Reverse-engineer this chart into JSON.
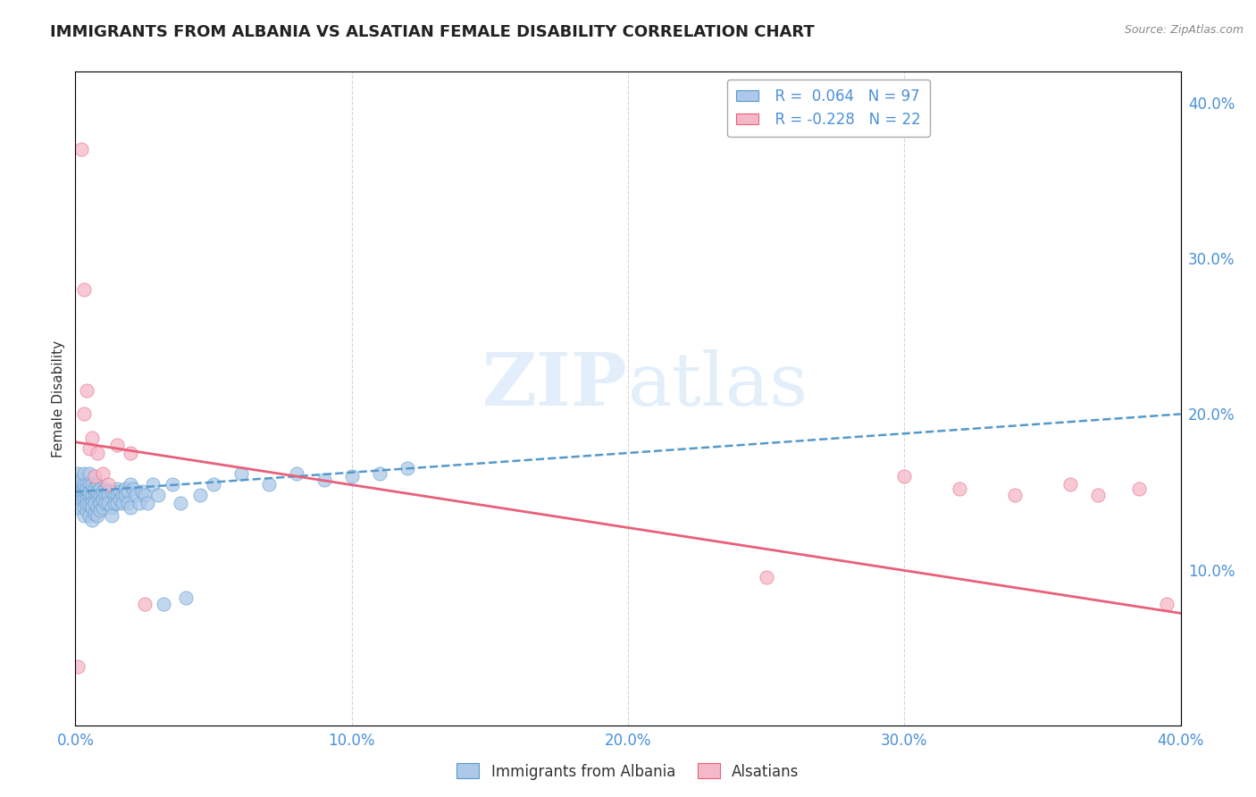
{
  "title": "IMMIGRANTS FROM ALBANIA VS ALSATIAN FEMALE DISABILITY CORRELATION CHART",
  "source": "Source: ZipAtlas.com",
  "ylabel": "Female Disability",
  "legend_label1": "Immigrants from Albania",
  "legend_label2": "Alsatians",
  "r1": 0.064,
  "n1": 97,
  "r2": -0.228,
  "n2": 22,
  "color_blue": "#adc8e8",
  "color_pink": "#f5b8c8",
  "color_blue_line": "#5599cc",
  "color_pink_line": "#e8607a",
  "xlim": [
    0.0,
    0.4
  ],
  "ylim": [
    0.0,
    0.42
  ],
  "xtick_vals": [
    0.0,
    0.1,
    0.2,
    0.3,
    0.4
  ],
  "ytick_right_vals": [
    0.1,
    0.2,
    0.3,
    0.4
  ],
  "background_color": "#ffffff",
  "grid_color": "#cccccc",
  "blue_scatter_x": [
    0.0005,
    0.001,
    0.001,
    0.001,
    0.002,
    0.002,
    0.002,
    0.002,
    0.003,
    0.003,
    0.003,
    0.003,
    0.003,
    0.003,
    0.003,
    0.004,
    0.004,
    0.004,
    0.004,
    0.004,
    0.004,
    0.004,
    0.005,
    0.005,
    0.005,
    0.005,
    0.005,
    0.005,
    0.006,
    0.006,
    0.006,
    0.006,
    0.006,
    0.006,
    0.007,
    0.007,
    0.007,
    0.007,
    0.007,
    0.008,
    0.008,
    0.008,
    0.008,
    0.008,
    0.009,
    0.009,
    0.009,
    0.009,
    0.01,
    0.01,
    0.01,
    0.01,
    0.011,
    0.011,
    0.011,
    0.012,
    0.012,
    0.012,
    0.013,
    0.013,
    0.013,
    0.014,
    0.014,
    0.015,
    0.015,
    0.015,
    0.016,
    0.016,
    0.017,
    0.017,
    0.018,
    0.018,
    0.019,
    0.019,
    0.02,
    0.02,
    0.021,
    0.022,
    0.023,
    0.024,
    0.025,
    0.026,
    0.028,
    0.03,
    0.032,
    0.035,
    0.038,
    0.04,
    0.045,
    0.05,
    0.06,
    0.07,
    0.08,
    0.09,
    0.1,
    0.11,
    0.12
  ],
  "blue_scatter_y": [
    0.155,
    0.162,
    0.148,
    0.14,
    0.155,
    0.15,
    0.145,
    0.158,
    0.152,
    0.148,
    0.145,
    0.155,
    0.162,
    0.14,
    0.135,
    0.15,
    0.155,
    0.148,
    0.145,
    0.152,
    0.138,
    0.142,
    0.148,
    0.155,
    0.15,
    0.142,
    0.135,
    0.162,
    0.152,
    0.148,
    0.143,
    0.155,
    0.14,
    0.132,
    0.15,
    0.148,
    0.143,
    0.152,
    0.136,
    0.148,
    0.155,
    0.15,
    0.14,
    0.135,
    0.152,
    0.148,
    0.143,
    0.138,
    0.15,
    0.148,
    0.14,
    0.145,
    0.152,
    0.148,
    0.143,
    0.15,
    0.148,
    0.143,
    0.15,
    0.14,
    0.135,
    0.148,
    0.143,
    0.152,
    0.148,
    0.143,
    0.15,
    0.145,
    0.148,
    0.143,
    0.152,
    0.148,
    0.15,
    0.143,
    0.155,
    0.14,
    0.152,
    0.148,
    0.143,
    0.15,
    0.148,
    0.143,
    0.155,
    0.148,
    0.078,
    0.155,
    0.143,
    0.082,
    0.148,
    0.155,
    0.162,
    0.155,
    0.162,
    0.158,
    0.16,
    0.162,
    0.165
  ],
  "pink_scatter_x": [
    0.001,
    0.002,
    0.003,
    0.003,
    0.004,
    0.005,
    0.006,
    0.007,
    0.008,
    0.01,
    0.012,
    0.015,
    0.02,
    0.025,
    0.25,
    0.3,
    0.32,
    0.34,
    0.36,
    0.37,
    0.385,
    0.395
  ],
  "pink_scatter_y": [
    0.038,
    0.37,
    0.28,
    0.2,
    0.215,
    0.178,
    0.185,
    0.16,
    0.175,
    0.162,
    0.155,
    0.18,
    0.175,
    0.078,
    0.095,
    0.16,
    0.152,
    0.148,
    0.155,
    0.148,
    0.152,
    0.078
  ],
  "trend_blue_x0": 0.0,
  "trend_blue_x1": 0.4,
  "trend_blue_y0": 0.15,
  "trend_blue_y1": 0.2,
  "trend_pink_x0": 0.0,
  "trend_pink_x1": 0.4,
  "trend_pink_y0": 0.182,
  "trend_pink_y1": 0.072
}
